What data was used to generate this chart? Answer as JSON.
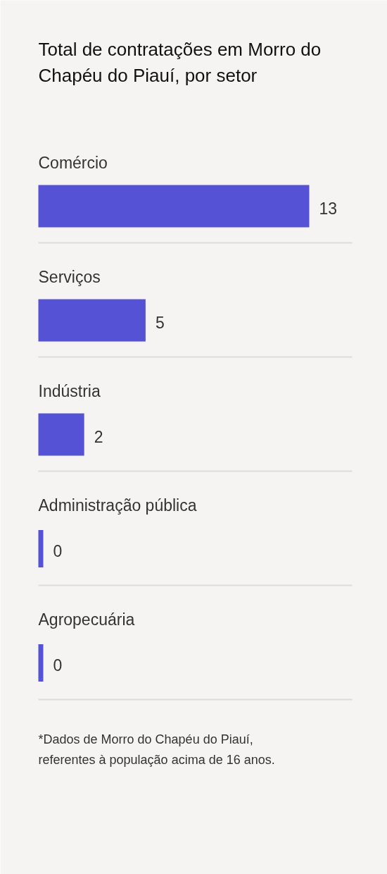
{
  "chart_data": {
    "type": "bar",
    "orientation": "horizontal",
    "title": "Total de contratações em Morro do Chapéu do Piauí, por setor",
    "categories": [
      "Comércio",
      "Serviços",
      "Indústria",
      "Administração pública",
      "Agropecuária"
    ],
    "values": [
      13,
      5,
      2,
      0,
      0
    ],
    "color": "#5652d6",
    "data_labels": true,
    "grid": "y",
    "tick_labels": "y",
    "annotations": [
      "*Dados de Morro do Chapéu do Piauí, referentes à população acima de 16 anos."
    ]
  }
}
